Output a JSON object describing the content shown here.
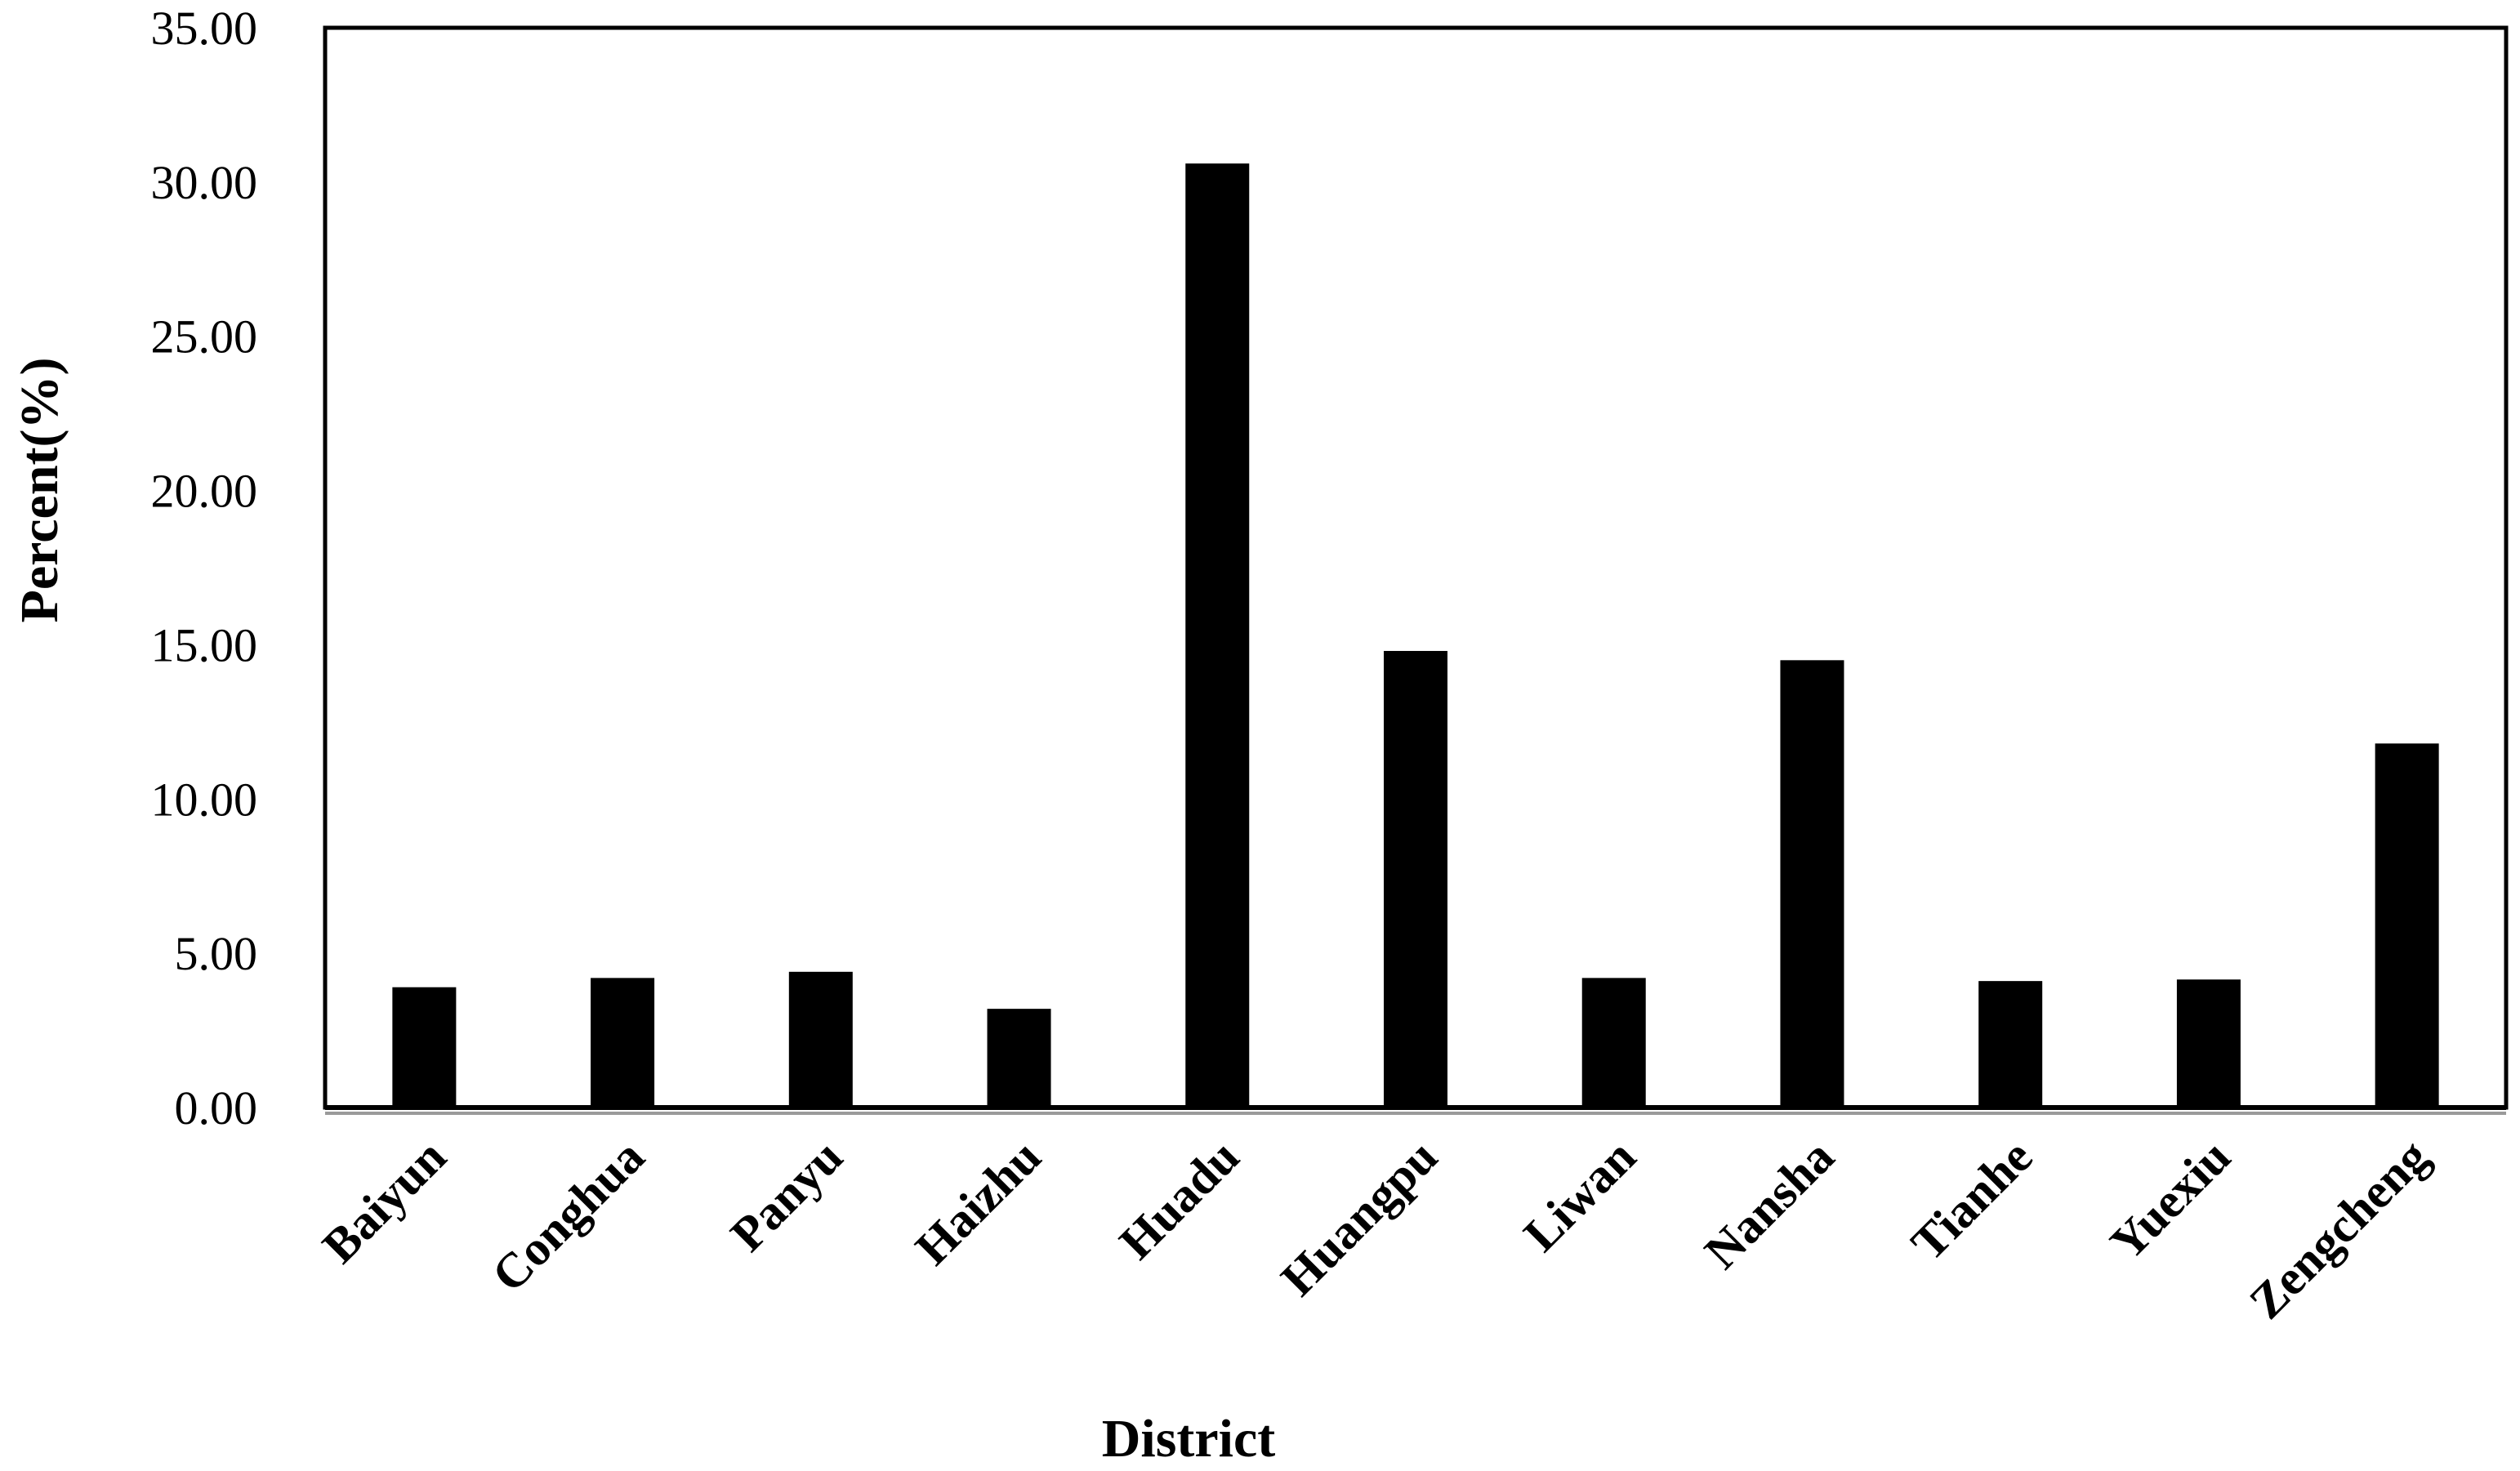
{
  "chart_data": {
    "type": "bar",
    "title": "",
    "xlabel": "District",
    "ylabel": "Percent(%)",
    "ylim": [
      0,
      35
    ],
    "yticks": [
      "0.00",
      "5.00",
      "10.00",
      "15.00",
      "20.00",
      "25.00",
      "30.00",
      "35.00"
    ],
    "grid": false,
    "bar_color": "#000000",
    "categories": [
      "Baiyun",
      "Conghua",
      "Panyu",
      "Haizhu",
      "Huadu",
      "Huangpu",
      "Liwan",
      "Nansha",
      "Tianhe",
      "Yuexiu",
      "Zengcheng"
    ],
    "values": [
      3.9,
      4.2,
      4.4,
      3.2,
      30.6,
      14.8,
      4.2,
      14.5,
      4.1,
      4.15,
      11.8
    ]
  }
}
